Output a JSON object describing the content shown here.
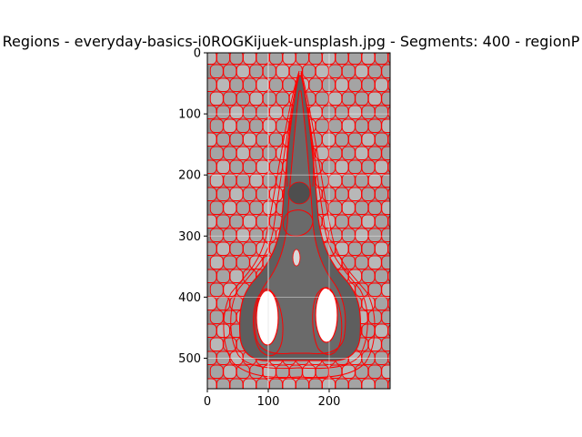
{
  "chart_data": {
    "type": "image",
    "title": "Regions - everyday-basics-i0ROGKijuek-unsplash.jpg - Segments: 400 - regionP",
    "xlim": [
      0,
      300
    ],
    "ylim": [
      550,
      0
    ],
    "x_ticks": [
      0,
      100,
      200
    ],
    "y_ticks": [
      0,
      100,
      200,
      300,
      400,
      500
    ],
    "grid": true,
    "boundary_color": "#ff0000",
    "colors": {
      "background": "#a8a8a8",
      "background_dark": "#6e6e6e",
      "object_dark": "#5a5a5a",
      "object_mid": "#7a7a7a",
      "highlight": "#ffffff",
      "light_region": "#bdbdbd"
    }
  }
}
